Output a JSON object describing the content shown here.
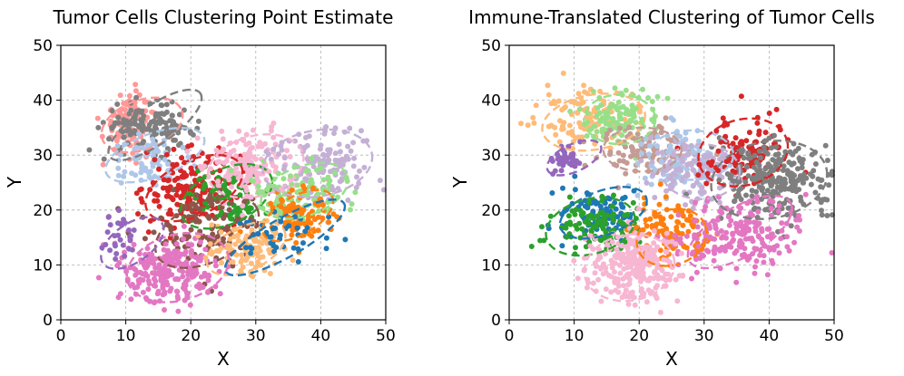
{
  "chart_data": [
    {
      "type": "scatter",
      "title": "Tumor Cells Clustering Point Estimate",
      "xlabel": "X",
      "ylabel": "Y",
      "xlim": [
        0,
        50
      ],
      "ylim": [
        0,
        50
      ],
      "xticks": [
        0,
        10,
        20,
        30,
        40,
        50
      ],
      "yticks": [
        0,
        10,
        20,
        30,
        40,
        50
      ],
      "grid": true,
      "ellipse_style": "dashed",
      "clusters": [
        {
          "color": "#ff9896",
          "center": [
            10.5,
            36
          ],
          "spread": [
            2.0,
            2.8
          ],
          "n": 110,
          "ellipse": {
            "center": [
              12.5,
              35.5
            ],
            "rx": 6.5,
            "ry": 4.5,
            "angle": 20
          }
        },
        {
          "color": "#7f7f7f",
          "center": [
            13.5,
            35
          ],
          "spread": [
            3.5,
            2.0
          ],
          "n": 150,
          "ellipse": {
            "center": [
              14.5,
              35.5
            ],
            "rx": 8.5,
            "ry": 3.5,
            "angle": 35
          }
        },
        {
          "color": "#aec7e8",
          "center": [
            14,
            29
          ],
          "spread": [
            3.0,
            2.2
          ],
          "n": 70,
          "ellipse": {
            "center": [
              14.5,
              30
            ],
            "rx": 8.0,
            "ry": 4.0,
            "angle": 20
          }
        },
        {
          "color": "#d62728",
          "center": [
            20,
            24
          ],
          "spread": [
            3.5,
            3.5
          ],
          "n": 170,
          "ellipse": {
            "center": [
              20.5,
              24
            ],
            "rx": 8.0,
            "ry": 5.0,
            "angle": 25
          }
        },
        {
          "color": "#2ca02c",
          "center": [
            26,
            22
          ],
          "spread": [
            3.5,
            3.0
          ],
          "n": 90,
          "ellipse": {
            "center": [
              25.5,
              22.5
            ],
            "rx": 7.5,
            "ry": 5.0,
            "angle": 25
          }
        },
        {
          "color": "#8c564b",
          "center": [
            22,
            17
          ],
          "spread": [
            4.5,
            3.5
          ],
          "n": 120,
          "ellipse": {
            "center": [
              22.5,
              16
            ],
            "rx": 8.5,
            "ry": 5.5,
            "angle": 25
          }
        },
        {
          "color": "#e377c2",
          "center": [
            17,
            9
          ],
          "spread": [
            3.5,
            3.0
          ],
          "n": 230,
          "ellipse": {
            "center": [
              18,
              9.5
            ],
            "rx": 8.0,
            "ry": 6.0,
            "angle": 15
          }
        },
        {
          "color": "#9467bd",
          "center": [
            9,
            15
          ],
          "spread": [
            1.2,
            2.0
          ],
          "n": 30,
          "ellipse": {
            "center": [
              11,
              14
            ],
            "rx": 5.5,
            "ry": 3.5,
            "angle": 35
          }
        },
        {
          "color": "#f7b6d2",
          "center": [
            29,
            28
          ],
          "spread": [
            3.5,
            3.0
          ],
          "n": 150,
          "ellipse": {
            "center": [
              30,
              28
            ],
            "rx": 7.5,
            "ry": 5.5,
            "angle": 15
          }
        },
        {
          "color": "#c5b0d5",
          "center": [
            40,
            29
          ],
          "spread": [
            4.0,
            3.5
          ],
          "n": 130,
          "ellipse": {
            "center": [
              39.5,
              28.5
            ],
            "rx": 8.5,
            "ry": 6.0,
            "angle": 10
          }
        },
        {
          "color": "#98df8a",
          "center": [
            37,
            23
          ],
          "spread": [
            4.0,
            2.5
          ],
          "n": 110,
          "ellipse": {
            "center": [
              37.5,
              23.5
            ],
            "rx": 7.0,
            "ry": 4.5,
            "angle": 20
          }
        },
        {
          "color": "#ff7f0e",
          "center": [
            37,
            19
          ],
          "spread": [
            3.0,
            2.5
          ],
          "n": 90,
          "ellipse": {
            "center": [
              36.5,
              19
            ],
            "rx": 6.0,
            "ry": 3.5,
            "angle": 30
          }
        },
        {
          "color": "#ffbb78",
          "center": [
            29,
            13
          ],
          "spread": [
            3.0,
            2.5
          ],
          "n": 100,
          "ellipse": {
            "center": [
              28.5,
              13
            ],
            "rx": 6.5,
            "ry": 4.0,
            "angle": 25
          }
        },
        {
          "color": "#1f77b4",
          "center": [
            34,
            15
          ],
          "spread": [
            4.0,
            2.0
          ],
          "n": 45,
          "ellipse": {
            "center": [
              34.5,
              15
            ],
            "rx": 10.5,
            "ry": 3.5,
            "angle": 30
          }
        }
      ]
    },
    {
      "type": "scatter",
      "title": "Immune-Translated Clustering of Tumor Cells",
      "xlabel": "X",
      "ylabel": "Y",
      "xlim": [
        0,
        50
      ],
      "ylim": [
        0,
        50
      ],
      "xticks": [
        0,
        10,
        20,
        30,
        40,
        50
      ],
      "yticks": [
        0,
        10,
        20,
        30,
        40,
        50
      ],
      "grid": true,
      "ellipse_style": "dashed",
      "clusters": [
        {
          "color": "#ffbb78",
          "center": [
            12,
            37
          ],
          "spread": [
            3.5,
            2.5
          ],
          "n": 120,
          "ellipse": {
            "center": [
              13,
              36
            ],
            "rx": 8.0,
            "ry": 5.0,
            "angle": 10
          }
        },
        {
          "color": "#98df8a",
          "center": [
            17,
            37
          ],
          "spread": [
            3.0,
            2.5
          ],
          "n": 110,
          "ellipse": {
            "center": [
              17,
              36.5
            ],
            "rx": 5.5,
            "ry": 4.5,
            "angle": 0
          }
        },
        {
          "color": "#9467bd",
          "center": [
            8.5,
            29.5
          ],
          "spread": [
            1.2,
            1.2
          ],
          "n": 40,
          "ellipse": {
            "center": [
              10,
              29.5
            ],
            "rx": 4.5,
            "ry": 2.5,
            "angle": 25
          }
        },
        {
          "color": "#c49c94",
          "center": [
            21,
            31
          ],
          "spread": [
            3.5,
            2.5
          ],
          "n": 100,
          "ellipse": {
            "center": [
              20.5,
              31
            ],
            "rx": 6.0,
            "ry": 4.0,
            "angle": 0
          }
        },
        {
          "color": "#aec7e8",
          "center": [
            27,
            29
          ],
          "spread": [
            3.5,
            3.0
          ],
          "n": 110,
          "ellipse": {
            "center": [
              28,
              30
            ],
            "rx": 6.5,
            "ry": 4.5,
            "angle": 0
          }
        },
        {
          "color": "#c5b0d5",
          "center": [
            29,
            27
          ],
          "spread": [
            3.5,
            3.0
          ],
          "n": 120,
          "ellipse": {
            "center": [
              29.5,
              27
            ],
            "rx": 6.0,
            "ry": 5.0,
            "angle": 0
          }
        },
        {
          "color": "#d62728",
          "center": [
            36,
            31
          ],
          "spread": [
            3.0,
            3.0
          ],
          "n": 110,
          "ellipse": {
            "center": [
              36,
              30.5
            ],
            "rx": 7.0,
            "ry": 6.0,
            "angle": 15
          }
        },
        {
          "color": "#7f7f7f",
          "center": [
            41,
            25
          ],
          "spread": [
            4.0,
            3.5
          ],
          "n": 250,
          "ellipse": {
            "center": [
              40,
              25.5
            ],
            "rx": 9.0,
            "ry": 7.0,
            "angle": 10
          }
        },
        {
          "color": "#1f77b4",
          "center": [
            14,
            19
          ],
          "spread": [
            3.0,
            2.5
          ],
          "n": 90,
          "ellipse": {
            "center": [
              14.5,
              19.5
            ],
            "rx": 7.0,
            "ry": 4.0,
            "angle": 20
          }
        },
        {
          "color": "#2ca02c",
          "center": [
            13,
            17
          ],
          "spread": [
            3.5,
            2.5
          ],
          "n": 110,
          "ellipse": {
            "center": [
              12.5,
              17
            ],
            "rx": 7.0,
            "ry": 5.0,
            "angle": 15
          }
        },
        {
          "color": "#ff7f0e",
          "center": [
            25,
            16
          ],
          "spread": [
            3.0,
            3.0
          ],
          "n": 110,
          "ellipse": {
            "center": [
              25,
              15
            ],
            "rx": 5.5,
            "ry": 5.0,
            "angle": 20
          }
        },
        {
          "color": "#e377c2",
          "center": [
            35,
            15
          ],
          "spread": [
            5.0,
            3.0
          ],
          "n": 200,
          "ellipse": {
            "center": [
              35.5,
              16
            ],
            "rx": 9.0,
            "ry": 4.5,
            "angle": 30
          }
        },
        {
          "color": "#f7b6d2",
          "center": [
            19,
            10
          ],
          "spread": [
            3.5,
            3.0
          ],
          "n": 260,
          "ellipse": {
            "center": [
              18.5,
              9.5
            ],
            "rx": 7.0,
            "ry": 6.0,
            "angle": 10
          }
        }
      ]
    }
  ]
}
